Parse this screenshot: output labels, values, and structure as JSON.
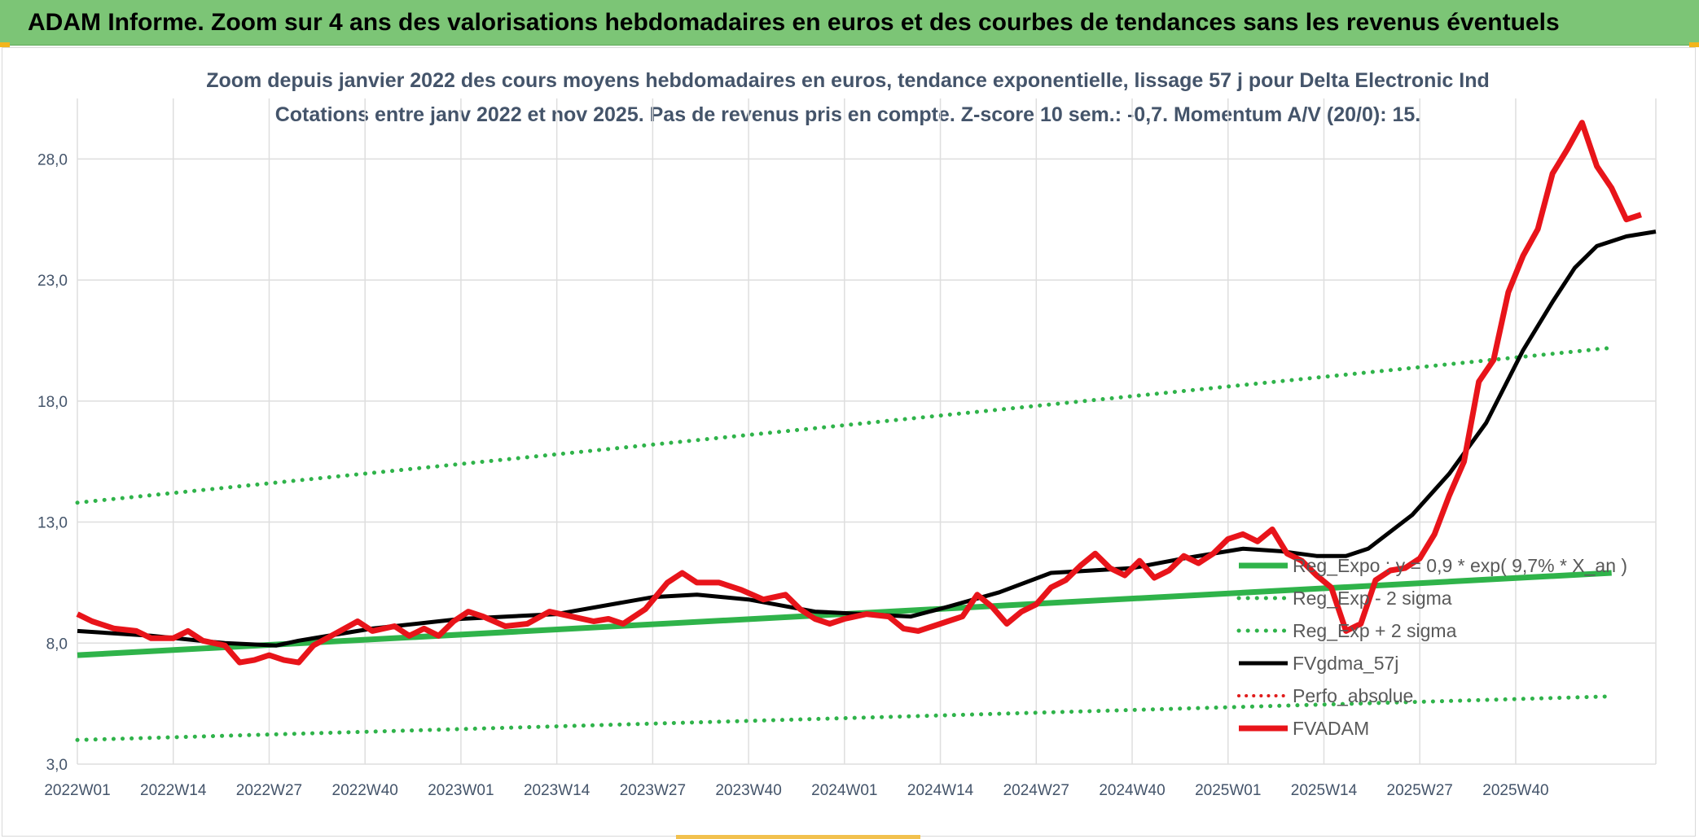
{
  "banner": {
    "title": "ADAM Informe. Zoom sur 4 ans des valorisations hebdomadaires en euros et des courbes de tendances sans les revenus éventuels"
  },
  "colors": {
    "banner_bg": "#7cc576",
    "reg_expo": "#2fb34a",
    "sigma": "#2fb34a",
    "fvgdma": "#000000",
    "perfo": "#e01b1b",
    "fvadam": "#e8141a",
    "grid": "#dedede"
  },
  "chart_data": {
    "type": "line",
    "title": "Zoom depuis janvier 2022 des cours moyens hebdomadaires en euros, tendance exponentielle, lissage 57 j pour Delta Electronic Ind",
    "subtitle": "Cotations entre janv 2022 et nov 2025. Pas de revenus pris en compte. Z-score 10 sem.: -0,7. Momentum A/V (20/0): 15.",
    "ylim": [
      3.0,
      30.5
    ],
    "y_ticks": [
      "3,0",
      "8,0",
      "13,0",
      "18,0",
      "23,0",
      "28,0"
    ],
    "y_tick_values": [
      3,
      8,
      13,
      18,
      23,
      28
    ],
    "x_ticks": [
      "2022W01",
      "2022W14",
      "2022W27",
      "2022W40",
      "2023W01",
      "2023W14",
      "2023W27",
      "2023W40",
      "2024W01",
      "2024W14",
      "2024W27",
      "2024W40",
      "2025W01",
      "2025W14",
      "2025W27",
      "2025W40"
    ],
    "x_tick_index": [
      0,
      13,
      26,
      39,
      52,
      65,
      78,
      91,
      104,
      117,
      130,
      143,
      156,
      169,
      182,
      195
    ],
    "x_range": [
      0,
      208
    ],
    "grid": true,
    "legend_position": "right-inside",
    "series": [
      {
        "name": "Reg_Expo : y = 0,9 * exp( 9,7% * X_an )",
        "style": "solid-thick",
        "points": [
          [
            0,
            7.5
          ],
          [
            208,
            10.9
          ]
        ]
      },
      {
        "name": "Reg_Exp - 2 sigma",
        "style": "dotted",
        "points": [
          [
            0,
            4.0
          ],
          [
            208,
            5.8
          ]
        ]
      },
      {
        "name": "Reg_Exp + 2 sigma",
        "style": "dotted",
        "points": [
          [
            0,
            13.8
          ],
          [
            208,
            20.2
          ]
        ]
      },
      {
        "name": "FVgdma_57j",
        "style": "solid",
        "points": [
          [
            0,
            8.5
          ],
          [
            10,
            8.3
          ],
          [
            20,
            8.0
          ],
          [
            27,
            7.9
          ],
          [
            30,
            8.1
          ],
          [
            40,
            8.6
          ],
          [
            52,
            9.0
          ],
          [
            65,
            9.2
          ],
          [
            78,
            9.9
          ],
          [
            84,
            10.0
          ],
          [
            91,
            9.8
          ],
          [
            100,
            9.3
          ],
          [
            113,
            9.1
          ],
          [
            118,
            9.5
          ],
          [
            125,
            10.1
          ],
          [
            132,
            10.9
          ],
          [
            143,
            11.1
          ],
          [
            150,
            11.5
          ],
          [
            158,
            11.9
          ],
          [
            163,
            11.8
          ],
          [
            168,
            11.6
          ],
          [
            172,
            11.6
          ],
          [
            175,
            11.9
          ],
          [
            181,
            13.3
          ],
          [
            186,
            15.0
          ],
          [
            191,
            17.1
          ],
          [
            196,
            20.1
          ],
          [
            200,
            22.1
          ],
          [
            203,
            23.5
          ],
          [
            206,
            24.4
          ],
          [
            210,
            24.8
          ],
          [
            214,
            25.0
          ]
        ]
      },
      {
        "name": "Perfo_absolue",
        "style": "dotted-red",
        "points": []
      },
      {
        "name": "FVADAM",
        "style": "solid-thick",
        "points": [
          [
            0,
            9.2
          ],
          [
            2,
            8.9
          ],
          [
            5,
            8.6
          ],
          [
            8,
            8.5
          ],
          [
            10,
            8.2
          ],
          [
            13,
            8.2
          ],
          [
            15,
            8.5
          ],
          [
            17,
            8.1
          ],
          [
            20,
            7.9
          ],
          [
            22,
            7.2
          ],
          [
            24,
            7.3
          ],
          [
            26,
            7.5
          ],
          [
            28,
            7.3
          ],
          [
            30,
            7.2
          ],
          [
            32,
            7.9
          ],
          [
            35,
            8.4
          ],
          [
            38,
            8.9
          ],
          [
            40,
            8.5
          ],
          [
            43,
            8.7
          ],
          [
            45,
            8.3
          ],
          [
            47,
            8.6
          ],
          [
            49,
            8.3
          ],
          [
            51,
            8.9
          ],
          [
            53,
            9.3
          ],
          [
            55,
            9.1
          ],
          [
            58,
            8.7
          ],
          [
            61,
            8.8
          ],
          [
            64,
            9.3
          ],
          [
            67,
            9.1
          ],
          [
            70,
            8.9
          ],
          [
            72,
            9.0
          ],
          [
            74,
            8.8
          ],
          [
            77,
            9.4
          ],
          [
            80,
            10.5
          ],
          [
            82,
            10.9
          ],
          [
            84,
            10.5
          ],
          [
            87,
            10.5
          ],
          [
            90,
            10.2
          ],
          [
            93,
            9.8
          ],
          [
            96,
            10.0
          ],
          [
            98,
            9.4
          ],
          [
            100,
            9.0
          ],
          [
            102,
            8.8
          ],
          [
            104,
            9.0
          ],
          [
            107,
            9.2
          ],
          [
            110,
            9.1
          ],
          [
            112,
            8.6
          ],
          [
            114,
            8.5
          ],
          [
            116,
            8.7
          ],
          [
            118,
            8.9
          ],
          [
            120,
            9.1
          ],
          [
            122,
            10.0
          ],
          [
            124,
            9.5
          ],
          [
            126,
            8.8
          ],
          [
            128,
            9.3
          ],
          [
            130,
            9.6
          ],
          [
            132,
            10.3
          ],
          [
            134,
            10.6
          ],
          [
            136,
            11.2
          ],
          [
            138,
            11.7
          ],
          [
            140,
            11.1
          ],
          [
            142,
            10.8
          ],
          [
            144,
            11.4
          ],
          [
            146,
            10.7
          ],
          [
            148,
            11.0
          ],
          [
            150,
            11.6
          ],
          [
            152,
            11.3
          ],
          [
            154,
            11.7
          ],
          [
            156,
            12.3
          ],
          [
            158,
            12.5
          ],
          [
            160,
            12.2
          ],
          [
            162,
            12.7
          ],
          [
            164,
            11.7
          ],
          [
            166,
            11.4
          ],
          [
            168,
            10.8
          ],
          [
            170,
            10.3
          ],
          [
            172,
            8.5
          ],
          [
            174,
            8.8
          ],
          [
            176,
            10.6
          ],
          [
            178,
            11.0
          ],
          [
            180,
            11.1
          ],
          [
            182,
            11.5
          ],
          [
            184,
            12.5
          ],
          [
            186,
            14.1
          ],
          [
            188,
            15.5
          ],
          [
            190,
            18.8
          ],
          [
            192,
            19.7
          ],
          [
            194,
            22.5
          ],
          [
            196,
            24.0
          ],
          [
            198,
            25.1
          ],
          [
            200,
            27.4
          ],
          [
            202,
            28.4
          ],
          [
            204,
            29.5
          ],
          [
            206,
            27.7
          ],
          [
            208,
            26.8
          ],
          [
            210,
            25.5
          ],
          [
            212,
            25.7
          ]
        ]
      }
    ]
  }
}
